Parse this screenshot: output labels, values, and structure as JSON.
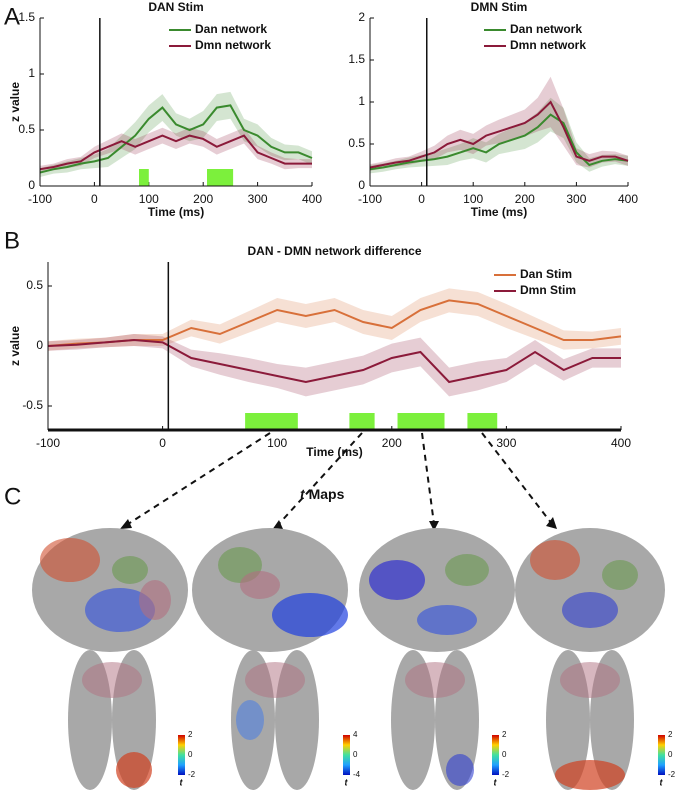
{
  "panel_labels": [
    "A",
    "B",
    "C"
  ],
  "chart_data": [
    {
      "type": "line",
      "title": "DAN Stim",
      "x_label": "Time (ms)",
      "y_label": "z value",
      "x": [
        -100,
        -75,
        -50,
        -25,
        0,
        25,
        50,
        75,
        100,
        125,
        150,
        175,
        200,
        225,
        250,
        275,
        300,
        325,
        350,
        375,
        400
      ],
      "xlim": [
        -100,
        400
      ],
      "xticks": [
        -100,
        0,
        100,
        200,
        300,
        400
      ],
      "ylim": [
        0,
        1.5
      ],
      "yticks": [
        0,
        0.5,
        1,
        1.5
      ],
      "onset": 10,
      "highlight_color": "#7cf03c",
      "highlights": [
        {
          "start": 82,
          "end": 100
        },
        {
          "start": 207,
          "end": 255
        }
      ],
      "series": [
        {
          "name": "Dan network",
          "color": "#3a8a2e",
          "values": [
            0.12,
            0.15,
            0.17,
            0.2,
            0.22,
            0.25,
            0.35,
            0.45,
            0.6,
            0.7,
            0.55,
            0.5,
            0.55,
            0.7,
            0.72,
            0.5,
            0.45,
            0.35,
            0.3,
            0.3,
            0.25
          ],
          "error": [
            0.04,
            0.04,
            0.05,
            0.05,
            0.06,
            0.08,
            0.1,
            0.12,
            0.12,
            0.12,
            0.1,
            0.1,
            0.12,
            0.12,
            0.12,
            0.1,
            0.1,
            0.08,
            0.07,
            0.06,
            0.06
          ]
        },
        {
          "name": "Dmn network",
          "color": "#8b1a3a",
          "values": [
            0.15,
            0.17,
            0.2,
            0.22,
            0.3,
            0.35,
            0.4,
            0.35,
            0.4,
            0.45,
            0.4,
            0.45,
            0.42,
            0.35,
            0.4,
            0.45,
            0.3,
            0.25,
            0.2,
            0.2,
            0.2
          ],
          "error": [
            0.03,
            0.03,
            0.04,
            0.04,
            0.05,
            0.06,
            0.07,
            0.07,
            0.07,
            0.07,
            0.07,
            0.07,
            0.07,
            0.07,
            0.07,
            0.07,
            0.06,
            0.05,
            0.05,
            0.04,
            0.04
          ]
        }
      ]
    },
    {
      "type": "line",
      "title": "DMN Stim",
      "x_label": "Time (ms)",
      "x": [
        -100,
        -75,
        -50,
        -25,
        0,
        25,
        50,
        75,
        100,
        125,
        150,
        175,
        200,
        225,
        250,
        275,
        300,
        325,
        350,
        375,
        400
      ],
      "xlim": [
        -100,
        400
      ],
      "xticks": [
        -100,
        0,
        100,
        200,
        300,
        400
      ],
      "ylim": [
        0,
        2
      ],
      "yticks": [
        0,
        0.5,
        1,
        1.5,
        2
      ],
      "onset": 10,
      "highlight_color": "#7cf03c",
      "highlights": [],
      "series": [
        {
          "name": "Dan network",
          "color": "#3a8a2e",
          "values": [
            0.2,
            0.22,
            0.25,
            0.28,
            0.3,
            0.32,
            0.35,
            0.4,
            0.45,
            0.4,
            0.5,
            0.55,
            0.6,
            0.7,
            0.85,
            0.75,
            0.4,
            0.25,
            0.3,
            0.32,
            0.3
          ],
          "error": [
            0.05,
            0.05,
            0.05,
            0.06,
            0.07,
            0.08,
            0.1,
            0.1,
            0.12,
            0.12,
            0.12,
            0.14,
            0.16,
            0.18,
            0.2,
            0.18,
            0.12,
            0.08,
            0.07,
            0.06,
            0.06
          ]
        },
        {
          "name": "Dmn network",
          "color": "#8b1a3a",
          "values": [
            0.22,
            0.25,
            0.28,
            0.3,
            0.35,
            0.4,
            0.5,
            0.55,
            0.5,
            0.6,
            0.65,
            0.7,
            0.75,
            0.85,
            1.0,
            0.7,
            0.35,
            0.3,
            0.35,
            0.35,
            0.3
          ],
          "error": [
            0.04,
            0.04,
            0.05,
            0.05,
            0.06,
            0.08,
            0.1,
            0.12,
            0.12,
            0.12,
            0.14,
            0.15,
            0.16,
            0.2,
            0.3,
            0.22,
            0.1,
            0.08,
            0.07,
            0.06,
            0.06
          ]
        }
      ]
    },
    {
      "type": "line",
      "title": "DAN - DMN network difference",
      "x_label": "Time (ms)",
      "y_label": "z value",
      "x": [
        -100,
        -75,
        -50,
        -25,
        0,
        25,
        50,
        75,
        100,
        125,
        150,
        175,
        200,
        225,
        250,
        275,
        300,
        325,
        350,
        375,
        400
      ],
      "xlim": [
        -100,
        400
      ],
      "xticks": [
        -100,
        0,
        100,
        200,
        300,
        400
      ],
      "ylim": [
        -0.7,
        0.7
      ],
      "yticks": [
        -0.5,
        0,
        0.5
      ],
      "onset": 5,
      "highlight_color": "#7cf03c",
      "highlights": [
        {
          "start": 72,
          "end": 118
        },
        {
          "start": 163,
          "end": 185
        },
        {
          "start": 205,
          "end": 246
        },
        {
          "start": 266,
          "end": 292
        }
      ],
      "series": [
        {
          "name": "Dan Stim",
          "color": "#d8703a",
          "values": [
            0,
            0.02,
            0.03,
            0.05,
            0.05,
            0.15,
            0.1,
            0.2,
            0.3,
            0.25,
            0.3,
            0.2,
            0.15,
            0.3,
            0.38,
            0.35,
            0.25,
            0.15,
            0.05,
            0.05,
            0.08
          ],
          "error": [
            0.04,
            0.04,
            0.04,
            0.05,
            0.05,
            0.07,
            0.08,
            0.09,
            0.1,
            0.1,
            0.1,
            0.1,
            0.1,
            0.1,
            0.1,
            0.1,
            0.1,
            0.09,
            0.08,
            0.07,
            0.07
          ]
        },
        {
          "name": "Dmn Stim",
          "color": "#8b1a3a",
          "values": [
            0,
            0.01,
            0.03,
            0.05,
            0.03,
            -0.1,
            -0.15,
            -0.2,
            -0.25,
            -0.3,
            -0.25,
            -0.2,
            -0.1,
            -0.05,
            -0.3,
            -0.25,
            -0.2,
            -0.05,
            -0.2,
            -0.1,
            -0.1
          ],
          "error": [
            0.04,
            0.04,
            0.04,
            0.05,
            0.05,
            0.07,
            0.09,
            0.1,
            0.1,
            0.12,
            0.12,
            0.12,
            0.12,
            0.12,
            0.12,
            0.12,
            0.1,
            0.1,
            0.09,
            0.08,
            0.08
          ]
        }
      ]
    }
  ],
  "maps": {
    "title_symbol": "t",
    "title": "Maps",
    "colorbars": [
      {
        "ticks": [
          2,
          0,
          -2
        ],
        "label": "t"
      },
      {
        "ticks": [
          4,
          0,
          -4
        ],
        "label": "t"
      },
      {
        "ticks": [
          2,
          0,
          -2
        ],
        "label": "t"
      },
      {
        "ticks": [
          2,
          0,
          -2
        ],
        "label": "t"
      }
    ]
  }
}
